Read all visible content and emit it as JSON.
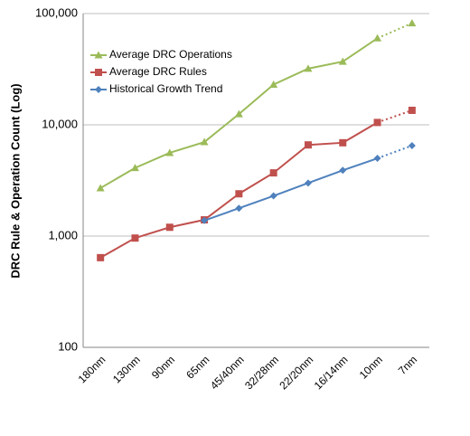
{
  "chart_data": {
    "type": "line",
    "y_label": "DRC Rule  & Operation Count (Log)",
    "categories": [
      "180nm",
      "130nm",
      "90nm",
      "65nm",
      "45/40nm",
      "32/28nm",
      "22/20nm",
      "16/14nm",
      "10nm",
      "7nm"
    ],
    "series": [
      {
        "name": "Average DRC Operations",
        "color": "#9bbb59",
        "marker": "triangle",
        "values": [
          2700,
          4100,
          5600,
          7000,
          12500,
          23000,
          32000,
          37000,
          60000,
          82000
        ]
      },
      {
        "name": "Average DRC Rules",
        "color": "#c0504d",
        "marker": "square",
        "values": [
          640,
          960,
          1200,
          1400,
          2400,
          3700,
          6600,
          6900,
          10500,
          13500
        ]
      },
      {
        "name": "Historical Growth Trend",
        "color": "#4f81bd",
        "marker": "diamond",
        "values": [
          null,
          null,
          null,
          1380,
          1780,
          2300,
          3000,
          3900,
          5000,
          6500
        ]
      }
    ],
    "log_scale": true,
    "ylim": [
      100,
      100000
    ],
    "yticks": [
      100,
      {
        "value": 1000,
        "label": "1,000"
      },
      {
        "value": 10000,
        "label": "10,000"
      },
      {
        "value": 100000,
        "label": "100,000"
      }
    ],
    "grid": true,
    "dashed_last_segment": true,
    "legend": "top-left"
  }
}
